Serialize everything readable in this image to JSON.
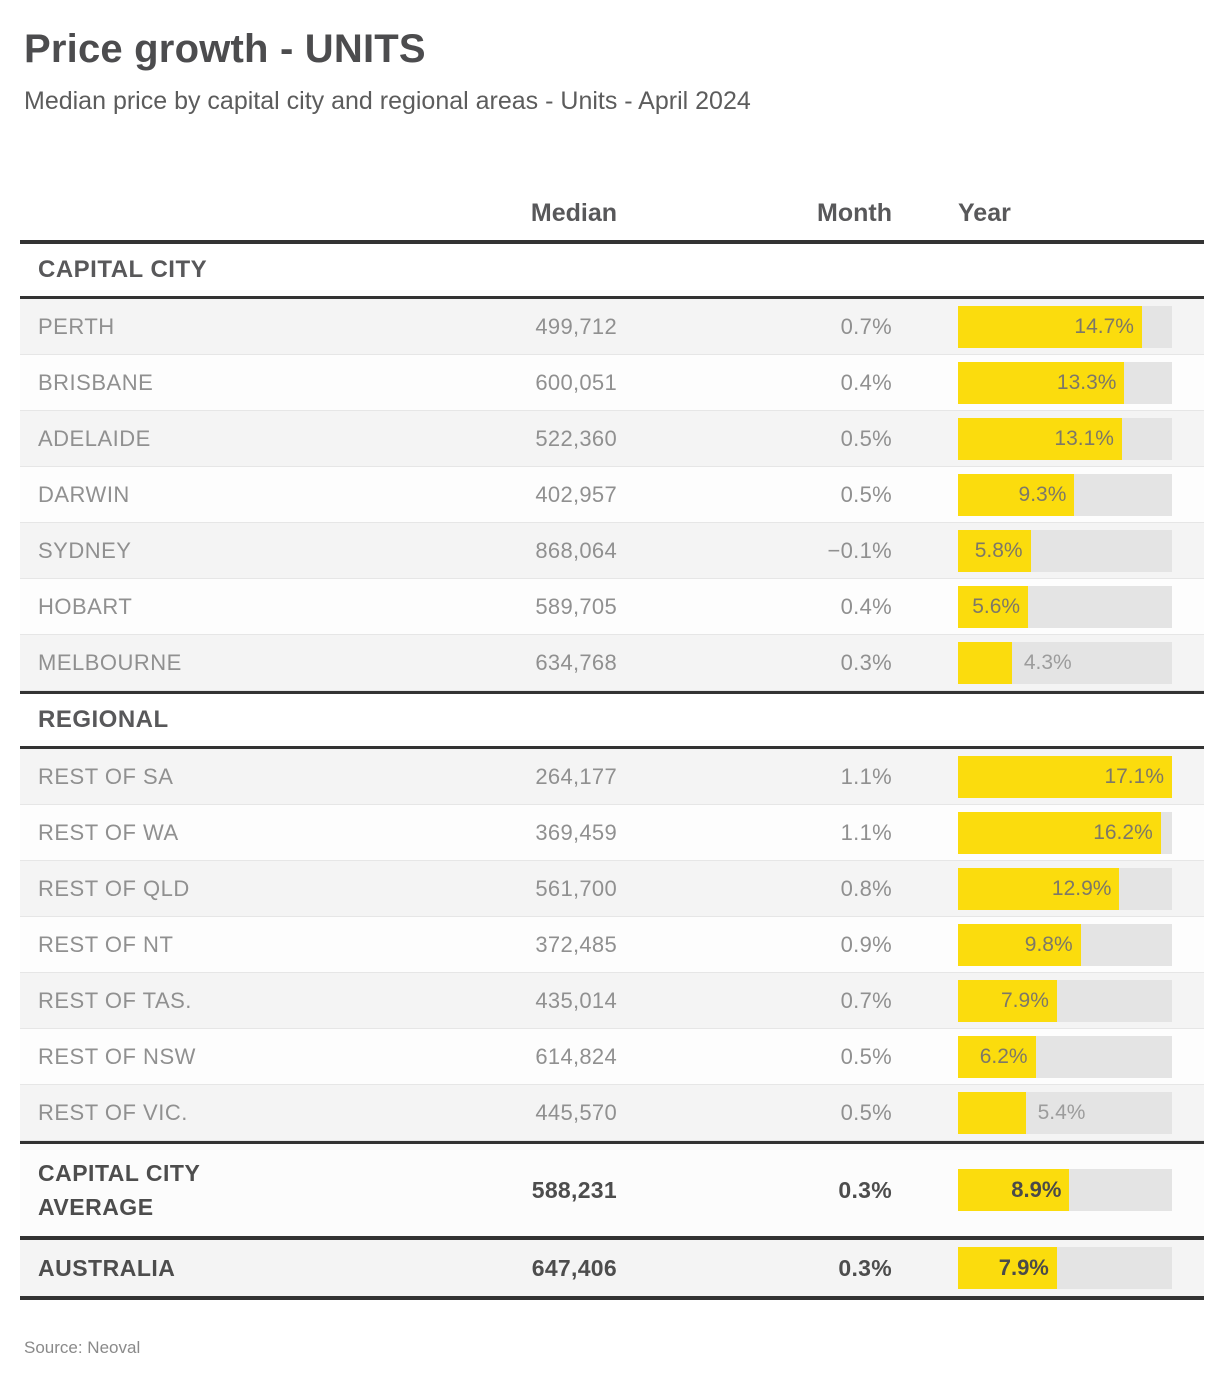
{
  "title": "Price growth  - UNITS",
  "subtitle": "Median price by capital city and regional areas - Units - April 2024",
  "source": "Source: Neoval",
  "columns": {
    "median": "Median",
    "month": "Month",
    "year": "Year"
  },
  "year_axis_max": 17.1,
  "colors": {
    "bar_yellow": "#fbdc0d",
    "bar_track_gray": "#e4e4e4",
    "row_shade_gray": "#f4f4f4",
    "rule_dark": "#333333"
  },
  "sections": [
    {
      "label": "CAPITAL CITY",
      "rows": [
        {
          "name": "PERTH",
          "median": "499,712",
          "month": "0.7%",
          "year": 14.7,
          "year_label": "14.7%"
        },
        {
          "name": "BRISBANE",
          "median": "600,051",
          "month": "0.4%",
          "year": 13.3,
          "year_label": "13.3%"
        },
        {
          "name": "ADELAIDE",
          "median": "522,360",
          "month": "0.5%",
          "year": 13.1,
          "year_label": "13.1%"
        },
        {
          "name": "DARWIN",
          "median": "402,957",
          "month": "0.5%",
          "year": 9.3,
          "year_label": "9.3%"
        },
        {
          "name": "SYDNEY",
          "median": "868,064",
          "month": "−0.1%",
          "year": 5.8,
          "year_label": "5.8%"
        },
        {
          "name": "HOBART",
          "median": "589,705",
          "month": "0.4%",
          "year": 5.6,
          "year_label": "5.6%"
        },
        {
          "name": "MELBOURNE",
          "median": "634,768",
          "month": "0.3%",
          "year": 4.3,
          "year_label": "4.3%"
        }
      ]
    },
    {
      "label": "REGIONAL",
      "rows": [
        {
          "name": "REST OF SA",
          "median": "264,177",
          "month": "1.1%",
          "year": 17.1,
          "year_label": "17.1%"
        },
        {
          "name": "REST OF WA",
          "median": "369,459",
          "month": "1.1%",
          "year": 16.2,
          "year_label": "16.2%"
        },
        {
          "name": "REST OF QLD",
          "median": "561,700",
          "month": "0.8%",
          "year": 12.9,
          "year_label": "12.9%"
        },
        {
          "name": "REST OF NT",
          "median": "372,485",
          "month": "0.9%",
          "year": 9.8,
          "year_label": "9.8%"
        },
        {
          "name": "REST OF TAS.",
          "median": "435,014",
          "month": "0.7%",
          "year": 7.9,
          "year_label": "7.9%"
        },
        {
          "name": "REST OF NSW",
          "median": "614,824",
          "month": "0.5%",
          "year": 6.2,
          "year_label": "6.2%"
        },
        {
          "name": "REST OF VIC.",
          "median": "445,570",
          "month": "0.5%",
          "year": 5.4,
          "year_label": "5.4%"
        }
      ]
    }
  ],
  "totals": [
    {
      "name": "CAPITAL CITY AVERAGE",
      "median": "588,231",
      "month": "0.3%",
      "year": 8.9,
      "year_label": "8.9%"
    },
    {
      "name": "AUSTRALIA",
      "median": "647,406",
      "month": "0.3%",
      "year": 7.9,
      "year_label": "7.9%"
    }
  ],
  "chart_data": {
    "type": "bar",
    "orientation": "horizontal",
    "title": "Price growth - UNITS",
    "subtitle": "Median price by capital city and regional areas - Units - April 2024",
    "categories": [
      "PERTH",
      "BRISBANE",
      "ADELAIDE",
      "DARWIN",
      "SYDNEY",
      "HOBART",
      "MELBOURNE",
      "REST OF SA",
      "REST OF WA",
      "REST OF QLD",
      "REST OF NT",
      "REST OF TAS.",
      "REST OF NSW",
      "REST OF VIC.",
      "CAPITAL CITY AVERAGE",
      "AUSTRALIA"
    ],
    "series": [
      {
        "name": "Median price",
        "values": [
          499712,
          600051,
          522360,
          402957,
          868064,
          589705,
          634768,
          264177,
          369459,
          561700,
          372485,
          435014,
          614824,
          445570,
          588231,
          647406
        ]
      },
      {
        "name": "Month change %",
        "values": [
          0.7,
          0.4,
          0.5,
          0.5,
          -0.1,
          0.4,
          0.3,
          1.1,
          1.1,
          0.8,
          0.9,
          0.7,
          0.5,
          0.5,
          0.3,
          0.3
        ]
      },
      {
        "name": "Year change %",
        "values": [
          14.7,
          13.3,
          13.1,
          9.3,
          5.8,
          5.6,
          4.3,
          17.1,
          16.2,
          12.9,
          9.8,
          7.9,
          6.2,
          5.4,
          8.9,
          7.9
        ]
      }
    ],
    "xlim": [
      0,
      17.1
    ],
    "bar_color": "#fbdc0d",
    "grid": false,
    "legend": "none",
    "source": "Source: Neoval"
  }
}
